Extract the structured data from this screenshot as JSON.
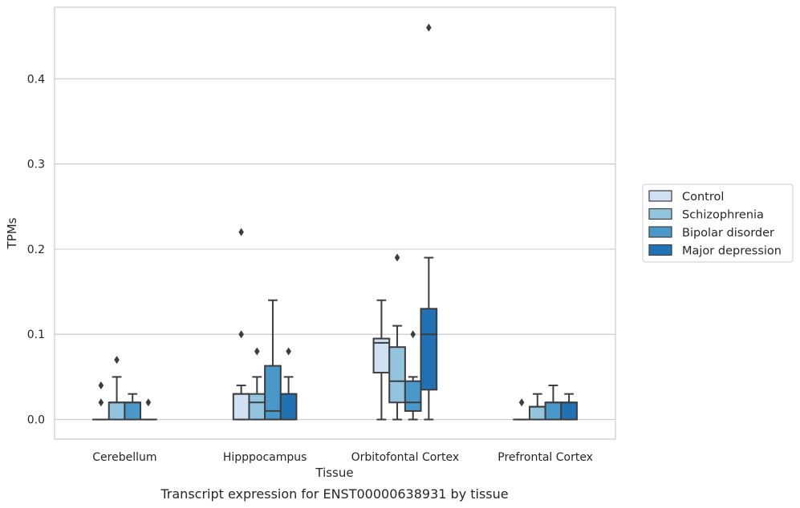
{
  "chart_data": {
    "type": "box",
    "title": "",
    "caption": "Transcript expression for ENST00000638931 by tissue",
    "xlabel": "Tissue",
    "ylabel": "TPMs",
    "ylim": [
      -0.023,
      0.484
    ],
    "yticks": [
      "0.0",
      "0.1",
      "0.2",
      "0.3",
      "0.4"
    ],
    "ytick_values": [
      0.0,
      0.1,
      0.2,
      0.3,
      0.4
    ],
    "grid": "horizontal",
    "legend_position": "right-outside",
    "categories": [
      "Cerebellum",
      "Hipppocampus",
      "Orbitofontal Cortex",
      "Prefrontal Cortex"
    ],
    "series": [
      {
        "name": "Control",
        "color": "#cfe1f2",
        "boxes": [
          {
            "q1": 0.0,
            "median": 0.0,
            "q3": 0.0,
            "whisker_low": 0.0,
            "whisker_high": 0.0,
            "outliers": [
              0.02,
              0.04
            ]
          },
          {
            "q1": 0.0,
            "median": 0.03,
            "q3": 0.03,
            "whisker_low": 0.0,
            "whisker_high": 0.04,
            "outliers": [
              0.1,
              0.22
            ]
          },
          {
            "q1": 0.055,
            "median": 0.09,
            "q3": 0.095,
            "whisker_low": 0.0,
            "whisker_high": 0.14,
            "outliers": []
          },
          {
            "q1": 0.0,
            "median": 0.0,
            "q3": 0.0,
            "whisker_low": 0.0,
            "whisker_high": 0.0,
            "outliers": [
              0.02
            ]
          }
        ]
      },
      {
        "name": "Schizophrenia",
        "color": "#93c4de",
        "boxes": [
          {
            "q1": 0.0,
            "median": 0.02,
            "q3": 0.02,
            "whisker_low": 0.0,
            "whisker_high": 0.05,
            "outliers": [
              0.07
            ]
          },
          {
            "q1": 0.0,
            "median": 0.02,
            "q3": 0.03,
            "whisker_low": 0.0,
            "whisker_high": 0.05,
            "outliers": [
              0.08
            ]
          },
          {
            "q1": 0.02,
            "median": 0.045,
            "q3": 0.085,
            "whisker_low": 0.0,
            "whisker_high": 0.11,
            "outliers": [
              0.19
            ]
          },
          {
            "q1": 0.0,
            "median": 0.015,
            "q3": 0.015,
            "whisker_low": 0.0,
            "whisker_high": 0.03,
            "outliers": []
          }
        ]
      },
      {
        "name": "Bipolar disorder",
        "color": "#4a98c9",
        "boxes": [
          {
            "q1": 0.0,
            "median": 0.02,
            "q3": 0.02,
            "whisker_low": 0.0,
            "whisker_high": 0.03,
            "outliers": []
          },
          {
            "q1": 0.0,
            "median": 0.01,
            "q3": 0.063,
            "whisker_low": 0.0,
            "whisker_high": 0.14,
            "outliers": []
          },
          {
            "q1": 0.01,
            "median": 0.02,
            "q3": 0.045,
            "whisker_low": 0.0,
            "whisker_high": 0.05,
            "outliers": [
              0.1
            ]
          },
          {
            "q1": 0.0,
            "median": 0.02,
            "q3": 0.02,
            "whisker_low": 0.0,
            "whisker_high": 0.04,
            "outliers": []
          }
        ]
      },
      {
        "name": "Major depression",
        "color": "#2171b5",
        "boxes": [
          {
            "q1": 0.0,
            "median": 0.0,
            "q3": 0.0,
            "whisker_low": 0.0,
            "whisker_high": 0.0,
            "outliers": [
              0.02
            ]
          },
          {
            "q1": 0.0,
            "median": 0.03,
            "q3": 0.03,
            "whisker_low": 0.0,
            "whisker_high": 0.05,
            "outliers": [
              0.08
            ]
          },
          {
            "q1": 0.035,
            "median": 0.1,
            "q3": 0.13,
            "whisker_low": 0.0,
            "whisker_high": 0.19,
            "outliers": [
              0.46
            ]
          },
          {
            "q1": 0.0,
            "median": 0.02,
            "q3": 0.02,
            "whisker_low": 0.0,
            "whisker_high": 0.03,
            "outliers": []
          }
        ]
      }
    ]
  }
}
